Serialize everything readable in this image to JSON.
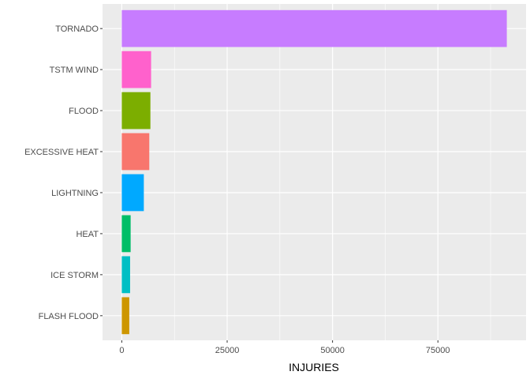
{
  "chart_data": {
    "type": "bar",
    "orientation": "horizontal",
    "categories": [
      "TORNADO",
      "TSTM WIND",
      "FLOOD",
      "EXCESSIVE HEAT",
      "LIGHTNING",
      "HEAT",
      "ICE STORM",
      "FLASH FLOOD"
    ],
    "values": [
      91346,
      6957,
      6789,
      6525,
      5230,
      2100,
      1975,
      1777
    ],
    "colors": [
      "#C77CFF",
      "#FF61CC",
      "#7CAE00",
      "#F8766D",
      "#00A9FF",
      "#00BE67",
      "#00BFC4",
      "#CD9600"
    ],
    "xlabel": "INJURIES",
    "ylabel": "",
    "xlim": [
      -4567,
      95913
    ],
    "xticks": [
      0,
      25000,
      50000,
      75000
    ],
    "xtick_labels": [
      "0",
      "25000",
      "50000",
      "75000"
    ],
    "grid": true,
    "panel_background": "#EBEBEB",
    "grid_color": "#FFFFFF"
  }
}
